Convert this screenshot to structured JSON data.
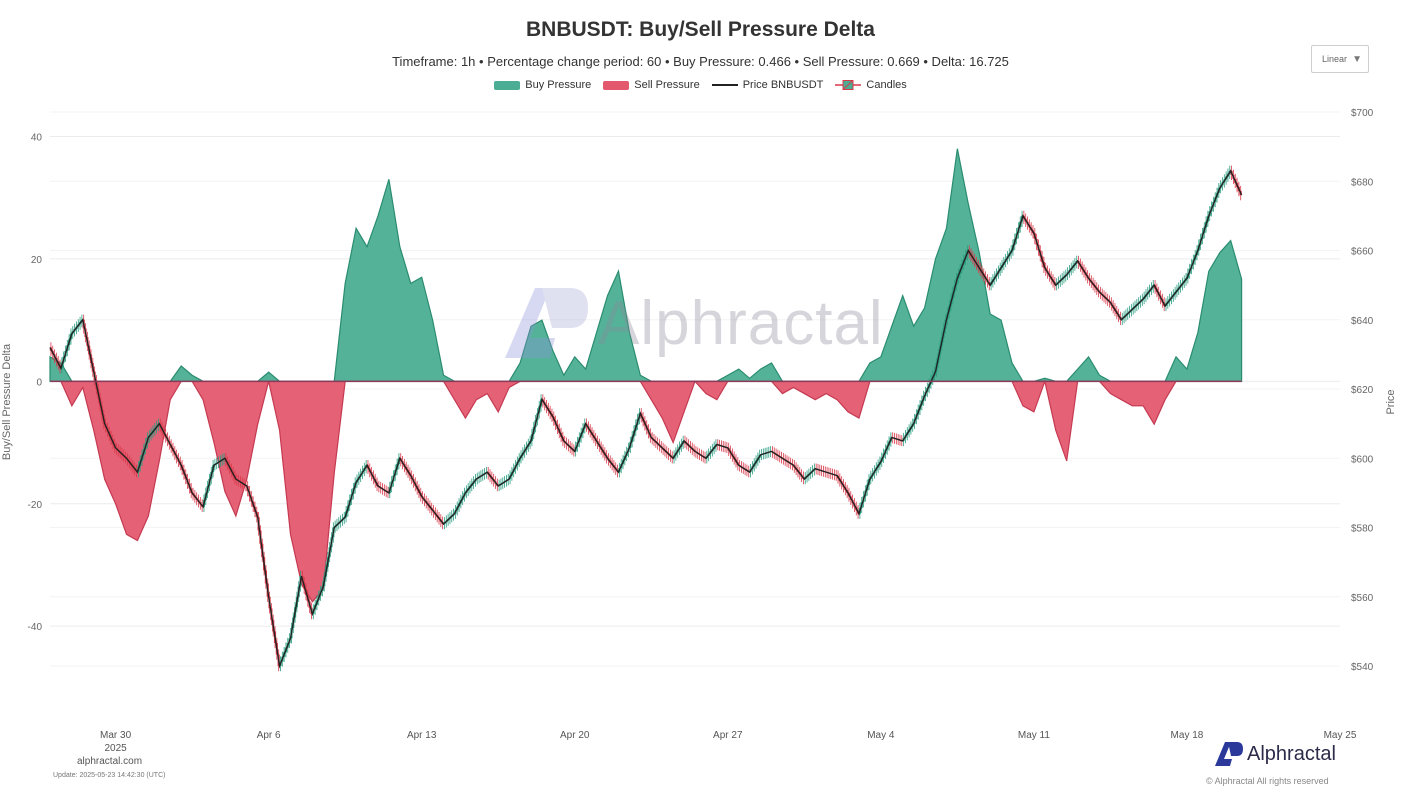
{
  "title": "BNBUSDT: Buy/Sell Pressure Delta",
  "subtitle": "Timeframe: 1h  •  Percentage change period: 60  •  Buy Pressure: 0.466 • Sell Pressure: 0.669 • Delta: 16.725",
  "legend": {
    "buy": "Buy Pressure",
    "sell": "Sell Pressure",
    "price": "Price BNBUSDT",
    "candles": "Candles"
  },
  "scale_select": {
    "value": "Linear"
  },
  "footer": {
    "site": "alphractal.com",
    "update": "Update: 2025-05-23 14:42:30 (UTC)",
    "brand": "Alphractal",
    "rights": "© Alphractal All rights reserved"
  },
  "watermark": "Alphractal",
  "colors": {
    "buy": "#4bae94",
    "buy_line": "#2a8c6f",
    "sell": "#e4586e",
    "sell_line": "#c53a52",
    "price": "#222222",
    "candle_up": "#2a9d80",
    "candle_down": "#d93a4a",
    "grid": "#ececec"
  },
  "chart_data": {
    "type": "area",
    "x_axis": {
      "type": "date",
      "range": [
        "2025-03-27",
        "2025-05-25"
      ],
      "ticks": [
        {
          "date": "2025-03-30",
          "label": "Mar 30",
          "sublabel": "2025"
        },
        {
          "date": "2025-04-06",
          "label": "Apr 6"
        },
        {
          "date": "2025-04-13",
          "label": "Apr 13"
        },
        {
          "date": "2025-04-20",
          "label": "Apr 20"
        },
        {
          "date": "2025-04-27",
          "label": "Apr 27"
        },
        {
          "date": "2025-05-04",
          "label": "May 4"
        },
        {
          "date": "2025-05-11",
          "label": "May 11"
        },
        {
          "date": "2025-05-18",
          "label": "May 18"
        },
        {
          "date": "2025-05-25",
          "label": "May 25"
        }
      ]
    },
    "y_left": {
      "label": "Buy/Sell Pressure Delta",
      "range": [
        -55,
        44
      ],
      "ticks": [
        40,
        20,
        0,
        -20,
        -40
      ]
    },
    "y_right": {
      "label": "Price",
      "range": [
        525,
        700
      ],
      "ticks": [
        700,
        680,
        660,
        640,
        620,
        600,
        580,
        560,
        540
      ],
      "tick_labels": [
        "$700",
        "$680",
        "$660",
        "$640",
        "$620",
        "$600",
        "$580",
        "$560",
        "$540"
      ]
    },
    "grid": true,
    "legend_position": "top-center",
    "delta": [
      [
        "2025-03-27",
        4
      ],
      [
        "2025-03-27T12",
        3
      ],
      [
        "2025-03-28",
        -4
      ],
      [
        "2025-03-28T12",
        -1
      ],
      [
        "2025-03-29",
        -8
      ],
      [
        "2025-03-29T12",
        -16
      ],
      [
        "2025-03-30",
        -20
      ],
      [
        "2025-03-30T12",
        -25
      ],
      [
        "2025-03-31",
        -26
      ],
      [
        "2025-03-31T12",
        -22
      ],
      [
        "2025-04-01",
        -13
      ],
      [
        "2025-04-01T12",
        -3
      ],
      [
        "2025-04-02",
        2.5
      ],
      [
        "2025-04-02T12",
        1
      ],
      [
        "2025-04-03",
        -3
      ],
      [
        "2025-04-03T12",
        -10
      ],
      [
        "2025-04-04",
        -18
      ],
      [
        "2025-04-04T12",
        -22
      ],
      [
        "2025-04-05",
        -16
      ],
      [
        "2025-04-05T12",
        -7
      ],
      [
        "2025-04-06",
        1.5
      ],
      [
        "2025-04-06T12",
        -8
      ],
      [
        "2025-04-07",
        -25
      ],
      [
        "2025-04-07T12",
        -33
      ],
      [
        "2025-04-08",
        -36
      ],
      [
        "2025-04-08T12",
        -34
      ],
      [
        "2025-04-09",
        -15
      ],
      [
        "2025-04-09T12",
        16
      ],
      [
        "2025-04-10",
        25
      ],
      [
        "2025-04-10T12",
        22
      ],
      [
        "2025-04-11",
        27
      ],
      [
        "2025-04-11T12",
        33
      ],
      [
        "2025-04-12",
        22
      ],
      [
        "2025-04-12T12",
        16
      ],
      [
        "2025-04-13",
        17
      ],
      [
        "2025-04-13T12",
        10
      ],
      [
        "2025-04-14",
        1
      ],
      [
        "2025-04-14T12",
        -3
      ],
      [
        "2025-04-15",
        -6
      ],
      [
        "2025-04-15T12",
        -3
      ],
      [
        "2025-04-16",
        -2
      ],
      [
        "2025-04-16T12",
        -5
      ],
      [
        "2025-04-17",
        -1
      ],
      [
        "2025-04-17T12",
        3
      ],
      [
        "2025-04-18",
        9
      ],
      [
        "2025-04-18T12",
        10
      ],
      [
        "2025-04-19",
        5
      ],
      [
        "2025-04-19T12",
        1
      ],
      [
        "2025-04-20",
        4
      ],
      [
        "2025-04-20T12",
        2
      ],
      [
        "2025-04-21",
        8
      ],
      [
        "2025-04-21T12",
        14
      ],
      [
        "2025-04-22",
        18
      ],
      [
        "2025-04-22T12",
        8
      ],
      [
        "2025-04-23",
        1
      ],
      [
        "2025-04-23T12",
        -3
      ],
      [
        "2025-04-24",
        -6
      ],
      [
        "2025-04-24T12",
        -10
      ],
      [
        "2025-04-25",
        -5
      ],
      [
        "2025-04-25T12",
        0
      ],
      [
        "2025-04-26",
        -2
      ],
      [
        "2025-04-26T12",
        -3
      ],
      [
        "2025-04-27",
        1
      ],
      [
        "2025-04-27T12",
        2
      ],
      [
        "2025-04-28",
        0.5
      ],
      [
        "2025-04-28T12",
        2
      ],
      [
        "2025-04-29",
        3
      ],
      [
        "2025-04-29T12",
        -2
      ],
      [
        "2025-04-30",
        -1
      ],
      [
        "2025-04-30T12",
        -2
      ],
      [
        "2025-05-01",
        -3
      ],
      [
        "2025-05-01T12",
        -2
      ],
      [
        "2025-05-02",
        -3
      ],
      [
        "2025-05-02T12",
        -5
      ],
      [
        "2025-05-03",
        -6
      ],
      [
        "2025-05-03T12",
        3
      ],
      [
        "2025-05-04",
        4
      ],
      [
        "2025-05-04T12",
        9
      ],
      [
        "2025-05-05",
        14
      ],
      [
        "2025-05-05T12",
        9
      ],
      [
        "2025-05-06",
        12
      ],
      [
        "2025-05-06T12",
        20
      ],
      [
        "2025-05-07",
        25
      ],
      [
        "2025-05-07T12",
        38
      ],
      [
        "2025-05-08",
        29
      ],
      [
        "2025-05-08T12",
        21
      ],
      [
        "2025-05-09",
        11
      ],
      [
        "2025-05-09T12",
        10
      ],
      [
        "2025-05-10",
        3
      ],
      [
        "2025-05-10T12",
        -4
      ],
      [
        "2025-05-11",
        -5
      ],
      [
        "2025-05-11T12",
        0.5
      ],
      [
        "2025-05-12",
        -8
      ],
      [
        "2025-05-12T12",
        -13
      ],
      [
        "2025-05-13",
        2
      ],
      [
        "2025-05-13T12",
        4
      ],
      [
        "2025-05-14",
        1
      ],
      [
        "2025-05-14T12",
        -2
      ],
      [
        "2025-05-15",
        -3
      ],
      [
        "2025-05-15T12",
        -4
      ],
      [
        "2025-05-16",
        -4
      ],
      [
        "2025-05-16T12",
        -7
      ],
      [
        "2025-05-17",
        -3
      ],
      [
        "2025-05-17T12",
        4
      ],
      [
        "2025-05-18",
        2
      ],
      [
        "2025-05-18T12",
        8
      ],
      [
        "2025-05-19",
        18
      ],
      [
        "2025-05-19T12",
        21
      ],
      [
        "2025-05-20",
        23
      ],
      [
        "2025-05-20T12",
        16.7
      ]
    ],
    "price": [
      [
        "2025-03-27",
        632
      ],
      [
        "2025-03-27T12",
        626
      ],
      [
        "2025-03-28",
        636
      ],
      [
        "2025-03-28T12",
        640
      ],
      [
        "2025-03-29",
        625
      ],
      [
        "2025-03-29T12",
        610
      ],
      [
        "2025-03-30",
        603
      ],
      [
        "2025-03-30T12",
        600
      ],
      [
        "2025-03-31",
        596
      ],
      [
        "2025-03-31T12",
        606
      ],
      [
        "2025-04-01",
        610
      ],
      [
        "2025-04-01T12",
        604
      ],
      [
        "2025-04-02",
        598
      ],
      [
        "2025-04-02T12",
        590
      ],
      [
        "2025-04-03",
        586
      ],
      [
        "2025-04-03T12",
        598
      ],
      [
        "2025-04-04",
        600
      ],
      [
        "2025-04-04T12",
        594
      ],
      [
        "2025-04-05",
        592
      ],
      [
        "2025-04-05T12",
        583
      ],
      [
        "2025-04-06",
        560
      ],
      [
        "2025-04-06T12",
        540
      ],
      [
        "2025-04-07",
        548
      ],
      [
        "2025-04-07T12",
        566
      ],
      [
        "2025-04-08",
        555
      ],
      [
        "2025-04-08T12",
        563
      ],
      [
        "2025-04-09",
        580
      ],
      [
        "2025-04-09T12",
        583
      ],
      [
        "2025-04-10",
        593
      ],
      [
        "2025-04-10T12",
        598
      ],
      [
        "2025-04-11",
        592
      ],
      [
        "2025-04-11T12",
        590
      ],
      [
        "2025-04-12",
        600
      ],
      [
        "2025-04-12T12",
        595
      ],
      [
        "2025-04-13",
        589
      ],
      [
        "2025-04-13T12",
        585
      ],
      [
        "2025-04-14",
        581
      ],
      [
        "2025-04-14T12",
        584
      ],
      [
        "2025-04-15",
        590
      ],
      [
        "2025-04-15T12",
        594
      ],
      [
        "2025-04-16",
        596
      ],
      [
        "2025-04-16T12",
        592
      ],
      [
        "2025-04-17",
        594
      ],
      [
        "2025-04-17T12",
        600
      ],
      [
        "2025-04-18",
        605
      ],
      [
        "2025-04-18T12",
        617
      ],
      [
        "2025-04-19",
        612
      ],
      [
        "2025-04-19T12",
        605
      ],
      [
        "2025-04-20",
        602
      ],
      [
        "2025-04-20T12",
        610
      ],
      [
        "2025-04-21",
        605
      ],
      [
        "2025-04-21T12",
        600
      ],
      [
        "2025-04-22",
        596
      ],
      [
        "2025-04-22T12",
        603
      ],
      [
        "2025-04-23",
        613
      ],
      [
        "2025-04-23T12",
        606
      ],
      [
        "2025-04-24",
        603
      ],
      [
        "2025-04-24T12",
        600
      ],
      [
        "2025-04-25",
        605
      ],
      [
        "2025-04-25T12",
        602
      ],
      [
        "2025-04-26",
        600
      ],
      [
        "2025-04-26T12",
        604
      ],
      [
        "2025-04-27",
        603
      ],
      [
        "2025-04-27T12",
        598
      ],
      [
        "2025-04-28",
        596
      ],
      [
        "2025-04-28T12",
        601
      ],
      [
        "2025-04-29",
        602
      ],
      [
        "2025-04-29T12",
        600
      ],
      [
        "2025-04-30",
        598
      ],
      [
        "2025-04-30T12",
        594
      ],
      [
        "2025-05-01",
        597
      ],
      [
        "2025-05-01T12",
        596
      ],
      [
        "2025-05-02",
        595
      ],
      [
        "2025-05-02T12",
        590
      ],
      [
        "2025-05-03",
        584
      ],
      [
        "2025-05-03T12",
        594
      ],
      [
        "2025-05-04",
        599
      ],
      [
        "2025-05-04T12",
        606
      ],
      [
        "2025-05-05",
        605
      ],
      [
        "2025-05-05T12",
        610
      ],
      [
        "2025-05-06",
        618
      ],
      [
        "2025-05-06T12",
        625
      ],
      [
        "2025-05-07",
        640
      ],
      [
        "2025-05-07T12",
        652
      ],
      [
        "2025-05-08",
        660
      ],
      [
        "2025-05-08T12",
        655
      ],
      [
        "2025-05-09",
        650
      ],
      [
        "2025-05-09T12",
        655
      ],
      [
        "2025-05-10",
        660
      ],
      [
        "2025-05-10T12",
        670
      ],
      [
        "2025-05-11",
        665
      ],
      [
        "2025-05-11T12",
        655
      ],
      [
        "2025-05-12",
        650
      ],
      [
        "2025-05-12T12",
        653
      ],
      [
        "2025-05-13",
        657
      ],
      [
        "2025-05-13T12",
        652
      ],
      [
        "2025-05-14",
        648
      ],
      [
        "2025-05-14T12",
        645
      ],
      [
        "2025-05-15",
        640
      ],
      [
        "2025-05-15T12",
        643
      ],
      [
        "2025-05-16",
        646
      ],
      [
        "2025-05-16T12",
        650
      ],
      [
        "2025-05-17",
        644
      ],
      [
        "2025-05-17T12",
        648
      ],
      [
        "2025-05-18",
        652
      ],
      [
        "2025-05-18T12",
        660
      ],
      [
        "2025-05-19",
        670
      ],
      [
        "2025-05-19T12",
        678
      ],
      [
        "2025-05-20",
        683
      ],
      [
        "2025-05-20T12",
        676
      ]
    ]
  }
}
